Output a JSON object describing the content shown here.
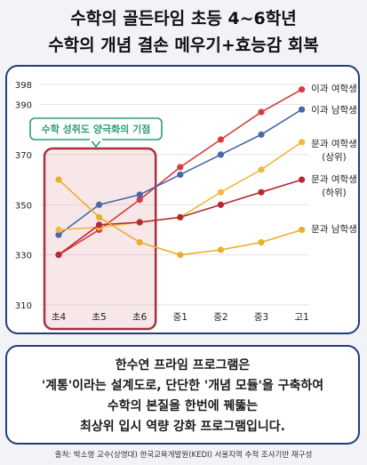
{
  "title": {
    "line1": "수학의 골든타임 초등 4~6학년",
    "line2": "수학의 개념 결손 메우기+효능감 회복"
  },
  "chart_data": {
    "type": "line",
    "categories": [
      "초4",
      "초5",
      "초6",
      "중1",
      "중2",
      "중3",
      "고1"
    ],
    "ytick_labels": [
      "310",
      "330",
      "350",
      "370",
      "390",
      "398"
    ],
    "ylim": [
      310,
      398
    ],
    "grid": "horizontal",
    "highlight": {
      "label": "수학 성취도 양극화의 기점",
      "range": [
        "초4",
        "초6"
      ],
      "color": "#a5333b"
    },
    "series": [
      {
        "name": "이과 여학생",
        "label_lines": [
          "이과 여학생"
        ],
        "color": "#d83b3b",
        "values": [
          330,
          340,
          352,
          365,
          376,
          387,
          396
        ]
      },
      {
        "name": "이과 남학생",
        "label_lines": [
          "이과 남학생"
        ],
        "color": "#4a67a8",
        "values": [
          338,
          350,
          354,
          362,
          370,
          378,
          388
        ]
      },
      {
        "name": "문과 여학생 (상위)",
        "label_lines": [
          "문과 여학생",
          "(상위)"
        ],
        "color": "#f0b841",
        "values": [
          340,
          341,
          343,
          345,
          355,
          364,
          375
        ]
      },
      {
        "name": "문과 여학생 (하위)",
        "label_lines": [
          "문과 여학생",
          "(하위)"
        ],
        "color": "#b8282f",
        "values": [
          330,
          342,
          343,
          345,
          350,
          355,
          360
        ]
      },
      {
        "name": "문과 남학생",
        "label_lines": [
          "문과 남학생"
        ],
        "color": "#e8b12c",
        "values": [
          360,
          345,
          335,
          330,
          332,
          335,
          340
        ]
      }
    ]
  },
  "message": {
    "line1": "한수연 프라임 프로그램은",
    "line2": "'계통'이라는 설계도로, 단단한 '개념 모듈'을 구축하여",
    "line3": "수학의 본질을 한번에 꿰뚫는",
    "line4": "최상위 입시 역량 강화 프로그램입니다."
  },
  "source": "출처: 박소영 교수(상명대) 한국교육개발원(KEDI) 서울지역 추적 조사기반 재구성"
}
